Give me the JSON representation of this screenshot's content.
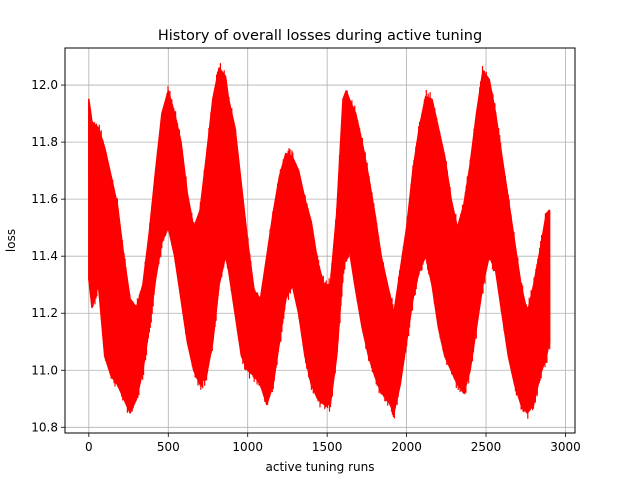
{
  "chart_data": {
    "type": "line",
    "title": "History of overall losses during active tuning",
    "xlabel": "active tuning runs",
    "ylabel": "loss",
    "xlim": [
      -150,
      3060
    ],
    "ylim": [
      10.78,
      12.13
    ],
    "xticks": [
      0,
      500,
      1000,
      1500,
      2000,
      2500,
      3000
    ],
    "xtick_labels": [
      "0",
      "500",
      "1000",
      "1500",
      "2000",
      "2500",
      "3000"
    ],
    "yticks": [
      10.8,
      11.0,
      11.2,
      11.4,
      11.6,
      11.8,
      12.0
    ],
    "ytick_labels": [
      "10.8",
      "11.0",
      "11.2",
      "11.4",
      "11.6",
      "11.8",
      "12.0"
    ],
    "grid": true,
    "colors": {
      "series": "#ff0000",
      "grid": "#b0b0b0",
      "axes": "#000000"
    },
    "series": [
      {
        "name": "",
        "color": "#ff0000",
        "upper_envelope": {
          "x": [
            0,
            20,
            60,
            100,
            140,
            180,
            220,
            260,
            300,
            340,
            380,
            420,
            460,
            500,
            540,
            580,
            620,
            660,
            700,
            740,
            780,
            820,
            860,
            880,
            920,
            960,
            1000,
            1040,
            1080,
            1120,
            1160,
            1200,
            1240,
            1280,
            1320,
            1360,
            1400,
            1440,
            1480,
            1520,
            1560,
            1600,
            1620,
            1640,
            1680,
            1720,
            1760,
            1800,
            1840,
            1880,
            1920,
            1960,
            2000,
            2040,
            2080,
            2120,
            2160,
            2200,
            2240,
            2280,
            2320,
            2360,
            2400,
            2440,
            2480,
            2520,
            2560,
            2600,
            2640,
            2680,
            2720,
            2760,
            2800,
            2840,
            2880,
            2900
          ],
          "y": [
            11.95,
            11.87,
            11.85,
            11.78,
            11.68,
            11.58,
            11.4,
            11.25,
            11.22,
            11.3,
            11.48,
            11.7,
            11.9,
            11.98,
            11.9,
            11.8,
            11.62,
            11.5,
            11.56,
            11.75,
            11.95,
            12.06,
            12.03,
            11.95,
            11.85,
            11.65,
            11.45,
            11.28,
            11.25,
            11.4,
            11.55,
            11.68,
            11.76,
            11.75,
            11.7,
            11.6,
            11.52,
            11.38,
            11.3,
            11.3,
            11.55,
            11.95,
            11.98,
            11.95,
            11.9,
            11.8,
            11.68,
            11.55,
            11.4,
            11.3,
            11.2,
            11.35,
            11.5,
            11.7,
            11.85,
            11.96,
            11.95,
            11.85,
            11.75,
            11.6,
            11.5,
            11.58,
            11.72,
            11.9,
            12.05,
            12.02,
            11.9,
            11.75,
            11.6,
            11.45,
            11.3,
            11.2,
            11.3,
            11.42,
            11.55,
            11.56
          ]
        },
        "lower_envelope": {
          "x": [
            0,
            20,
            60,
            100,
            140,
            180,
            220,
            260,
            300,
            340,
            380,
            420,
            460,
            500,
            540,
            580,
            620,
            660,
            700,
            740,
            780,
            820,
            860,
            880,
            920,
            960,
            1000,
            1040,
            1080,
            1120,
            1160,
            1200,
            1240,
            1280,
            1320,
            1360,
            1400,
            1440,
            1480,
            1520,
            1560,
            1600,
            1620,
            1640,
            1680,
            1720,
            1760,
            1800,
            1840,
            1880,
            1920,
            1960,
            2000,
            2040,
            2080,
            2120,
            2160,
            2200,
            2240,
            2280,
            2320,
            2360,
            2400,
            2440,
            2480,
            2520,
            2560,
            2600,
            2640,
            2680,
            2720,
            2760,
            2800,
            2840,
            2880,
            2900
          ],
          "y": [
            11.32,
            11.22,
            11.3,
            11.05,
            10.98,
            10.95,
            10.9,
            10.85,
            10.9,
            11.0,
            11.15,
            11.32,
            11.45,
            11.5,
            11.4,
            11.25,
            11.1,
            11.0,
            10.95,
            10.98,
            11.1,
            11.3,
            11.4,
            11.35,
            11.2,
            11.05,
            11.0,
            10.98,
            10.95,
            10.88,
            10.95,
            11.1,
            11.25,
            11.3,
            11.2,
            11.05,
            10.95,
            10.9,
            10.88,
            10.88,
            11.05,
            11.35,
            11.4,
            11.42,
            11.28,
            11.15,
            11.05,
            10.98,
            10.92,
            10.9,
            10.85,
            10.95,
            11.1,
            11.25,
            11.35,
            11.4,
            11.3,
            11.15,
            11.05,
            11.0,
            10.95,
            10.92,
            11.0,
            11.15,
            11.3,
            11.4,
            11.35,
            11.2,
            11.05,
            10.95,
            10.88,
            10.85,
            10.88,
            10.98,
            11.05,
            11.1
          ]
        }
      }
    ]
  }
}
